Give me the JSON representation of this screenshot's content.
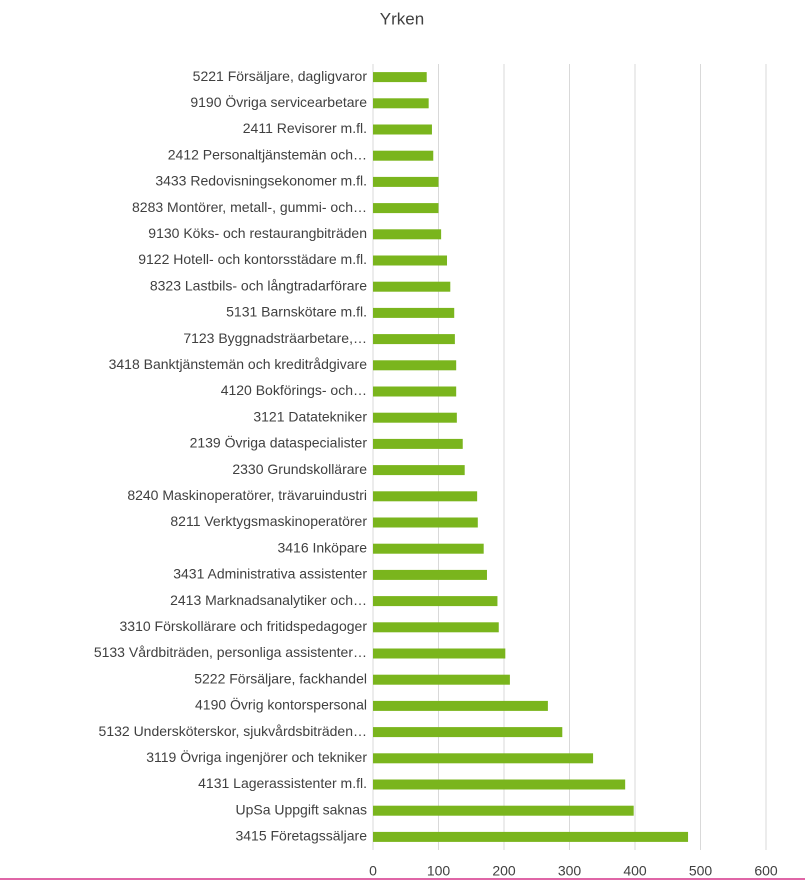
{
  "chart_data": {
    "type": "bar",
    "orientation": "horizontal",
    "title": "Yrken",
    "categories": [
      "5221 Försäljare, dagligvaror",
      "9190 Övriga servicearbetare",
      "2411 Revisorer m.fl.",
      "2412 Personaltjänstemän och…",
      "3433 Redovisningsekonomer m.fl.",
      "8283 Montörer, metall-, gummi- och…",
      "9130 Köks- och restaurangbiträden",
      "9122 Hotell- och kontorsstädare m.fl.",
      "8323 Lastbils- och långtradarförare",
      "5131 Barnskötare m.fl.",
      "7123 Byggnadsträarbetare,…",
      "3418 Banktjänstemän och kreditrådgivare",
      "4120 Bokförings- och…",
      "3121 Datatekniker",
      "2139 Övriga dataspecialister",
      "2330 Grundskollärare",
      "8240 Maskinoperatörer, trävaruindustri",
      "8211 Verktygsmaskinoperatörer",
      "3416 Inköpare",
      "3431 Administrativa assistenter",
      "2413 Marknadsanalytiker och…",
      "3310 Förskollärare och fritidspedagoger",
      "5133 Vårdbiträden, personliga assistenter…",
      "5222 Försäljare, fackhandel",
      "4190 Övrig kontorspersonal",
      "5132 Undersköterskor, sjukvårdsbiträden…",
      "3119 Övriga ingenjörer och tekniker",
      "4131 Lagerassistenter m.fl.",
      "UpSa Uppgift saknas",
      "3415 Företagssäljare"
    ],
    "values": [
      82,
      85,
      90,
      92,
      100,
      100,
      104,
      113,
      118,
      124,
      125,
      127,
      127,
      128,
      137,
      140,
      159,
      160,
      169,
      174,
      190,
      192,
      202,
      209,
      267,
      289,
      336,
      385,
      398,
      481
    ],
    "color": "#7ab51d",
    "xlim": [
      0,
      600
    ],
    "xticks": [
      0,
      100,
      200,
      300,
      400,
      500,
      600
    ],
    "grid": true
  }
}
